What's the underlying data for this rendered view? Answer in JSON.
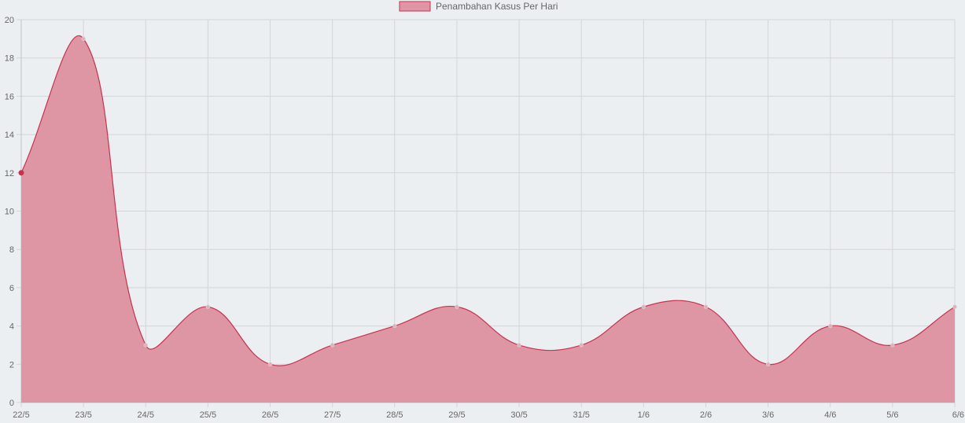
{
  "chart_data": {
    "type": "area",
    "categories": [
      "22/5",
      "23/5",
      "24/5",
      "25/5",
      "26/5",
      "27/5",
      "28/5",
      "29/5",
      "30/5",
      "31/5",
      "1/6",
      "2/6",
      "3/6",
      "4/6",
      "5/6",
      "6/6"
    ],
    "series": [
      {
        "name": "Penambahan Kasus Per Hari",
        "values": [
          12,
          19,
          3,
          5,
          2,
          3,
          4,
          5,
          3,
          3,
          5,
          5,
          2,
          4,
          3,
          5
        ],
        "fill_color": "#df96a4",
        "line_color": "#c7324f"
      }
    ],
    "ylim": [
      0,
      20
    ],
    "yticks": [
      0,
      2,
      4,
      6,
      8,
      10,
      12,
      14,
      16,
      18,
      20
    ],
    "grid": true,
    "legend": "top-center"
  }
}
